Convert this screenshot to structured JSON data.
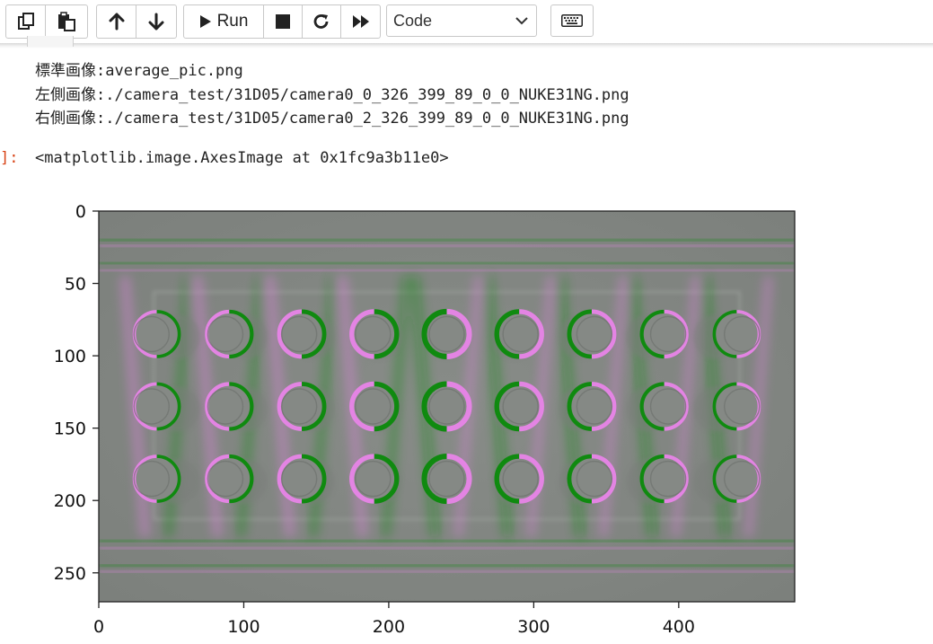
{
  "toolbar": {
    "run_label": "Run",
    "cell_type": "Code",
    "icons": [
      "copy-icon",
      "paste-icon",
      "move-up-icon",
      "move-down-icon",
      "run-icon",
      "stop-icon",
      "restart-icon",
      "fast-forward-icon",
      "keyboard-icon"
    ]
  },
  "output": {
    "lines": [
      "標準画像:average_pic.png",
      "左側画像:./camera_test/31D05/camera0_0_326_399_89_0_0_NUKE31NG.png",
      "右側画像:./camera_test/31D05/camera0_2_326_399_89_0_0_NUKE31NG.png"
    ],
    "prompt": "]:",
    "result": "<matplotlib.image.AxesImage at 0x1fc9a3b11e0>"
  },
  "chart_data": {
    "type": "heatmap",
    "image_width": 480,
    "image_height": 270,
    "xlim": [
      0,
      480
    ],
    "ylim": [
      270,
      0
    ],
    "x_ticks": [
      0,
      100,
      200,
      300,
      400
    ],
    "y_ticks": [
      0,
      50,
      100,
      150,
      200,
      250
    ],
    "colors": {
      "background": "#808580",
      "green": "#0a8a0a",
      "magenta": "#e884e8"
    },
    "content": "false-color difference image: 3 rows x 9 columns of circular holes with green/magenta edges",
    "rows_y": [
      85,
      135,
      185
    ],
    "cols_x": [
      40,
      90,
      140,
      190,
      240,
      290,
      340,
      390,
      440
    ]
  }
}
